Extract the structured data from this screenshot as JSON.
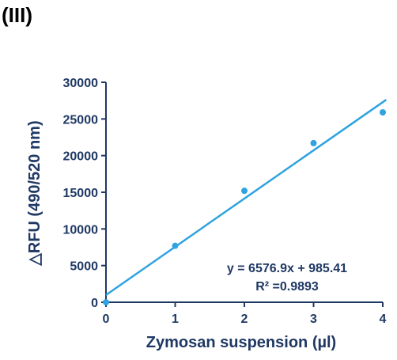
{
  "panel_label": "(III)",
  "colors": {
    "axis": "#1f3864",
    "marker": "#2ea3e0",
    "line": "#2ea3e0",
    "text": "#1f3864"
  },
  "chart_data": {
    "type": "scatter",
    "title": "",
    "xlabel": "Zymosan suspension (µl)",
    "ylabel": "△RFU (490/520 nm)",
    "xlim": [
      0,
      4
    ],
    "ylim": [
      0,
      30000
    ],
    "xticks": [
      "0",
      "1",
      "2",
      "3",
      "4"
    ],
    "yticks": [
      "0",
      "5000",
      "10000",
      "15000",
      "20000",
      "25000",
      "30000"
    ],
    "grid": false,
    "series": [
      {
        "x": [
          0,
          1,
          2,
          3,
          4
        ],
        "y": [
          0,
          7700,
          15200,
          21700,
          25900
        ]
      }
    ],
    "trendline": {
      "type": "linear",
      "slope": 6576.9,
      "intercept": 985.41
    },
    "annotations": [
      "y = 6576.9x + 985.41",
      "R² =0.9893"
    ]
  }
}
